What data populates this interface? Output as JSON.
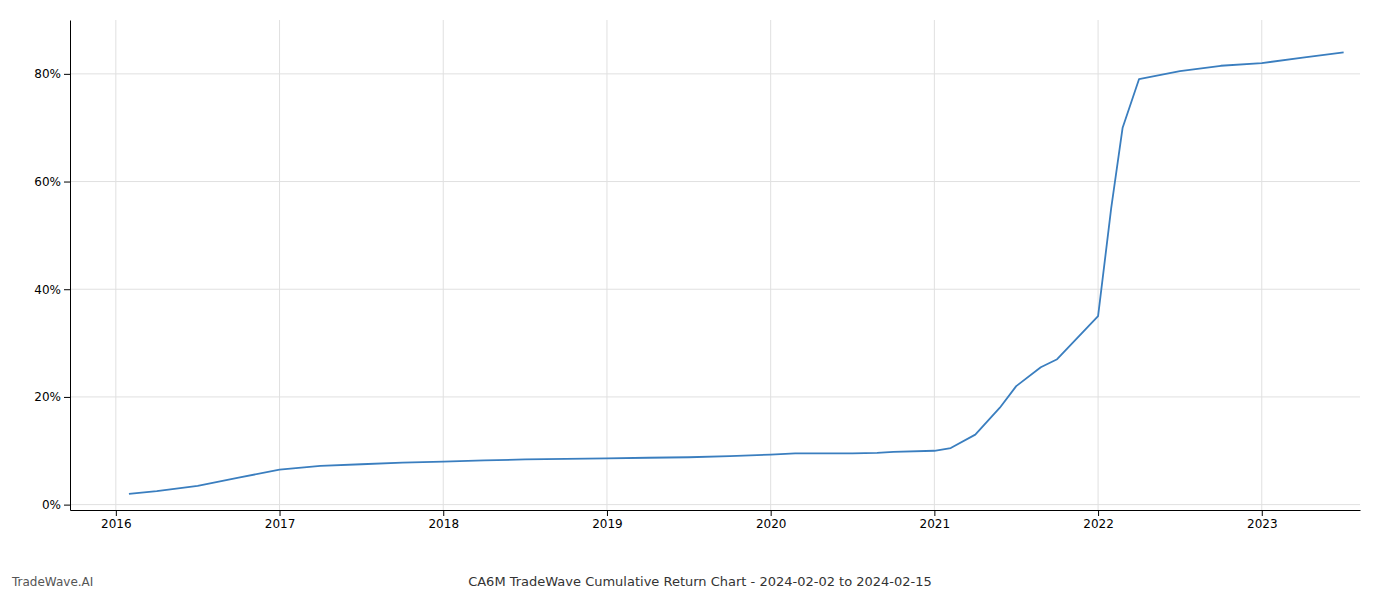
{
  "chart_data": {
    "type": "line",
    "title": "CA6M TradeWave Cumulative Return Chart - 2024-02-02 to 2024-02-15",
    "annotations": [
      "TradeWave.AI"
    ],
    "x": [
      2016.08,
      2016.25,
      2016.5,
      2016.75,
      2017.0,
      2017.25,
      2017.5,
      2017.75,
      2018.0,
      2018.25,
      2018.5,
      2018.75,
      2019.0,
      2019.25,
      2019.5,
      2019.75,
      2020.0,
      2020.15,
      2020.3,
      2020.5,
      2020.65,
      2020.75,
      2021.0,
      2021.1,
      2021.25,
      2021.4,
      2021.5,
      2021.65,
      2021.75,
      2022.0,
      2022.08,
      2022.15,
      2022.25,
      2022.5,
      2022.75,
      2023.0,
      2023.25,
      2023.5
    ],
    "values": [
      2.0,
      2.5,
      3.5,
      5.0,
      6.5,
      7.2,
      7.5,
      7.8,
      8.0,
      8.2,
      8.4,
      8.5,
      8.6,
      8.7,
      8.8,
      9.0,
      9.3,
      9.5,
      9.5,
      9.5,
      9.6,
      9.8,
      10.0,
      10.5,
      13.0,
      18.0,
      22.0,
      25.5,
      27.0,
      35.0,
      55.0,
      70.0,
      79.0,
      80.5,
      81.5,
      82.0,
      83.0,
      84.0
    ],
    "color": "#3a7ebf",
    "xlim": [
      2015.72,
      2023.6
    ],
    "ylim": [
      -1,
      90
    ],
    "xticks": [
      2016,
      2017,
      2018,
      2019,
      2020,
      2021,
      2022,
      2023
    ],
    "yticks": [
      {
        "value": 0,
        "label": "0%"
      },
      {
        "value": 20,
        "label": "20%"
      },
      {
        "value": 40,
        "label": "40%"
      },
      {
        "value": 60,
        "label": "60%"
      },
      {
        "value": 80,
        "label": "80%"
      }
    ],
    "grid": true
  }
}
